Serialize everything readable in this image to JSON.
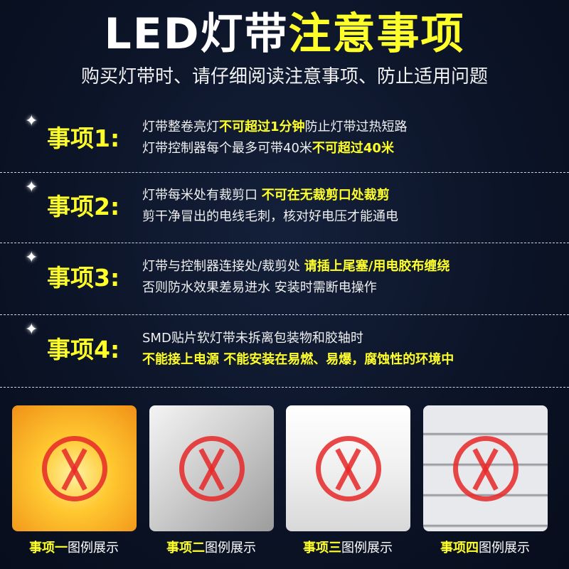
{
  "header": {
    "title_plain": "LED灯带",
    "title_highlight": "注意事项",
    "subtitle": "购买灯带时、请仔细阅读注意事项、防止适用问题"
  },
  "items": [
    {
      "label": "事项1:",
      "lines": [
        [
          {
            "t": "灯带整卷亮灯",
            "h": false
          },
          {
            "t": "不可超过1分钟",
            "h": true
          },
          {
            "t": "防止灯带过热短路",
            "h": false
          }
        ],
        [
          {
            "t": "灯带控制器每个最多可带40米",
            "h": false
          },
          {
            "t": "不可超过40米",
            "h": true
          }
        ]
      ]
    },
    {
      "label": "事项2:",
      "lines": [
        [
          {
            "t": "灯带每米处有裁剪口 ",
            "h": false
          },
          {
            "t": "不可在无裁剪口处裁剪",
            "h": true
          }
        ],
        [
          {
            "t": "剪干净冒出的电线毛刺，核对好电压才能通电",
            "h": false
          }
        ]
      ]
    },
    {
      "label": "事项3:",
      "lines": [
        [
          {
            "t": "灯带与控制器连接处/裁剪处 ",
            "h": false
          },
          {
            "t": "请插上尾塞/用电胶布缠绕",
            "h": true
          }
        ],
        [
          {
            "t": " 否则防水效果差易进水 安装时需断电操作",
            "h": false
          }
        ]
      ]
    },
    {
      "label": "事项4:",
      "lines": [
        [
          {
            "t": "SMD贴片软灯带未拆离包装物和胶轴时",
            "h": false
          }
        ],
        [
          {
            "t": "不能接上电源 不能安装在易燃、易爆，腐蚀性的环境中",
            "h": true
          }
        ]
      ]
    }
  ],
  "examples": [
    {
      "cap_hl": "事项一",
      "cap": "图例展示",
      "bg": "#f2a020"
    },
    {
      "cap_hl": "事项二",
      "cap": "图例展示",
      "bg": "#d8d8d8"
    },
    {
      "cap_hl": "事项三",
      "cap": "图例展示",
      "bg": "#ececec"
    },
    {
      "cap_hl": "事项四",
      "cap": "图例展示",
      "bg": "#d4d6da"
    }
  ],
  "colors": {
    "accent": "#ffff2a",
    "background": "#0b1326",
    "cross": "#e62828"
  }
}
